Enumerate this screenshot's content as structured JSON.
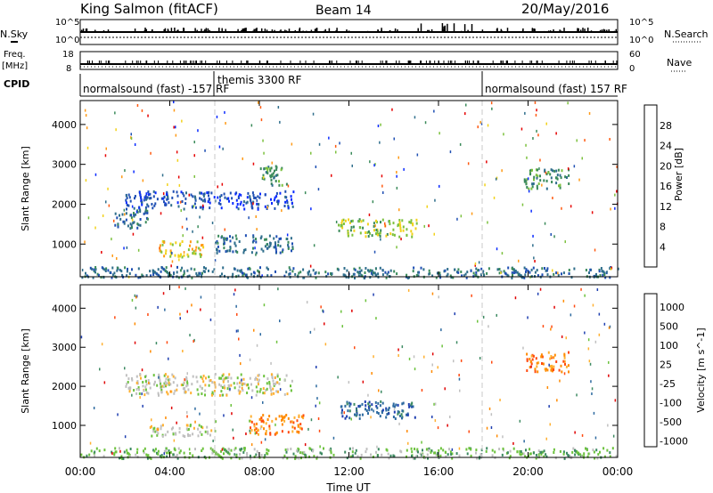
{
  "header": {
    "station": "King Salmon (fitACF)",
    "beam": "Beam 14",
    "date": "20/May/2016"
  },
  "strip_labels": {
    "nsky": "N.Sky",
    "nsearch": "N.Search",
    "freq": "Freq.",
    "freq_unit": "[MHz]",
    "nave": "Nave",
    "cpid": "CPID",
    "noise_ticks_left": [
      "10^5",
      "10^0"
    ],
    "noise_ticks_right": [
      "10^5",
      "10^0"
    ],
    "freq_ticks_left": [
      "18",
      "8"
    ],
    "nave_ticks_right": [
      "60",
      "0"
    ]
  },
  "cpid_segments": [
    {
      "label": "normalsound (fast) -157 RF",
      "start_h": 0,
      "end_h": 6
    },
    {
      "label": "themis 3300 RF",
      "start_h": 6,
      "end_h": 18
    },
    {
      "label": "normalsound (fast) 157 RF",
      "start_h": 18,
      "end_h": 24
    }
  ],
  "colors": {
    "power_scale": [
      "#0a2bff",
      "#1f4fb3",
      "#2f6e8c",
      "#3a8a5a",
      "#7cc13e",
      "#f2d21b",
      "#ff9a16",
      "#ff5a10",
      "#e60000"
    ],
    "velocity_scale": [
      "#1f3fb0",
      "#2d6aa0",
      "#3d8a62",
      "#6cc23d",
      "#c0c0c0",
      "#ffb030",
      "#ff8a00",
      "#ff4a10",
      "#e00000"
    ]
  },
  "chart_data": [
    {
      "type": "heatmap",
      "title": "",
      "xlabel": "Time UT",
      "ylabel": "Slant Range [km]",
      "x_ticks": [
        "00:00",
        "04:00",
        "08:00",
        "12:00",
        "16:00",
        "20:00",
        "00:00"
      ],
      "xlim_hours": [
        0,
        24
      ],
      "y_ticks": [
        1000,
        2000,
        3000,
        4000
      ],
      "ylim_km": [
        180,
        4600
      ],
      "colorbar": {
        "label": "Power [dB]",
        "ticks": [
          "4",
          "8",
          "12",
          "16",
          "20",
          "24",
          "28"
        ]
      },
      "regions": [
        {
          "t": [
            2.0,
            9.5
          ],
          "r": [
            1900,
            2350
          ],
          "level": 1
        },
        {
          "t": [
            1.5,
            3.0
          ],
          "r": [
            1400,
            1900
          ],
          "level": 2
        },
        {
          "t": [
            3.5,
            5.5
          ],
          "r": [
            700,
            1100
          ],
          "level": 5
        },
        {
          "t": [
            6.0,
            9.5
          ],
          "r": [
            800,
            1250
          ],
          "level": 2
        },
        {
          "t": [
            8.0,
            9.2
          ],
          "r": [
            2500,
            3000
          ],
          "level": 3
        },
        {
          "t": [
            11.5,
            15.0
          ],
          "r": [
            1200,
            1650
          ],
          "level": 4
        },
        {
          "t": [
            19.8,
            21.8
          ],
          "r": [
            2400,
            2900
          ],
          "level": 3
        },
        {
          "t": [
            0,
            24
          ],
          "r": [
            180,
            450
          ],
          "level": 2
        }
      ]
    },
    {
      "type": "heatmap",
      "title": "",
      "xlabel": "Time UT",
      "ylabel": "Slant Range [km]",
      "x_ticks": [
        "00:00",
        "04:00",
        "08:00",
        "12:00",
        "16:00",
        "20:00",
        "00:00"
      ],
      "xlim_hours": [
        0,
        24
      ],
      "y_ticks": [
        1000,
        2000,
        3000,
        4000
      ],
      "ylim_km": [
        180,
        4600
      ],
      "colorbar": {
        "label": "Velocity [m s^-1]",
        "ticks": [
          "1000",
          "500",
          "100",
          "25",
          "-25",
          "-100",
          "-500",
          "-1000"
        ]
      },
      "regions": [
        {
          "t": [
            2.0,
            9.5
          ],
          "r": [
            1800,
            2350
          ],
          "level": 4
        },
        {
          "t": [
            3.0,
            6.0
          ],
          "r": [
            750,
            1050
          ],
          "level": 4
        },
        {
          "t": [
            7.5,
            10.0
          ],
          "r": [
            800,
            1300
          ],
          "level": 6
        },
        {
          "t": [
            11.5,
            15.0
          ],
          "r": [
            1200,
            1650
          ],
          "level": 1
        },
        {
          "t": [
            19.8,
            21.8
          ],
          "r": [
            2400,
            2900
          ],
          "level": 6
        },
        {
          "t": [
            0,
            24
          ],
          "r": [
            180,
            450
          ],
          "level": 3
        }
      ]
    }
  ]
}
